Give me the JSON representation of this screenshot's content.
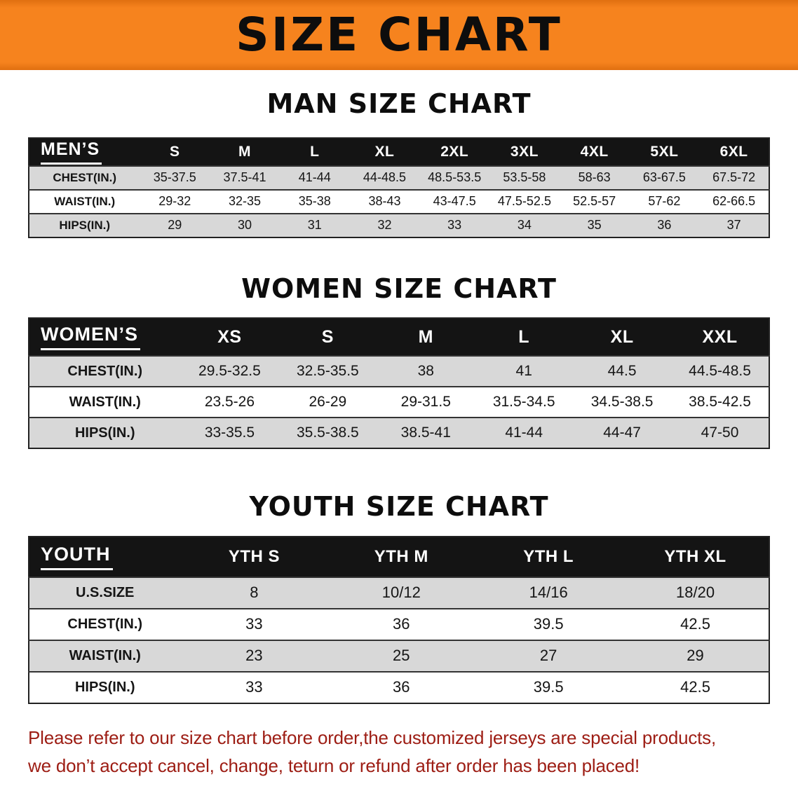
{
  "banner": {
    "title": "SIZE CHART"
  },
  "sections": [
    {
      "id": "men",
      "heading": "MAN SIZE CHART",
      "table": {
        "header": [
          "MEN’S",
          "S",
          "M",
          "L",
          "XL",
          "2XL",
          "3XL",
          "4XL",
          "5XL",
          "6XL"
        ],
        "rows": [
          [
            "CHEST(IN.)",
            "35-37.5",
            "37.5-41",
            "41-44",
            "44-48.5",
            "48.5-53.5",
            "53.5-58",
            "58-63",
            "63-67.5",
            "67.5-72"
          ],
          [
            "WAIST(IN.)",
            "29-32",
            "32-35",
            "35-38",
            "38-43",
            "43-47.5",
            "47.5-52.5",
            "52.5-57",
            "57-62",
            "62-66.5"
          ],
          [
            "HIPS(IN.)",
            "29",
            "30",
            "31",
            "32",
            "33",
            "34",
            "35",
            "36",
            "37"
          ]
        ]
      }
    },
    {
      "id": "women",
      "heading": "WOMEN SIZE CHART",
      "table": {
        "header": [
          "WOMEN’S",
          "XS",
          "S",
          "M",
          "L",
          "XL",
          "XXL"
        ],
        "rows": [
          [
            "CHEST(IN.)",
            "29.5-32.5",
            "32.5-35.5",
            "38",
            "41",
            "44.5",
            "44.5-48.5"
          ],
          [
            "WAIST(IN.)",
            "23.5-26",
            "26-29",
            "29-31.5",
            "31.5-34.5",
            "34.5-38.5",
            "38.5-42.5"
          ],
          [
            "HIPS(IN.)",
            "33-35.5",
            "35.5-38.5",
            "38.5-41",
            "41-44",
            "44-47",
            "47-50"
          ]
        ]
      }
    },
    {
      "id": "youth",
      "heading": "YOUTH SIZE CHART",
      "table": {
        "header": [
          "YOUTH",
          "YTH S",
          "YTH M",
          "YTH L",
          "YTH XL"
        ],
        "rows": [
          [
            "U.S.SIZE",
            "8",
            "10/12",
            "14/16",
            "18/20"
          ],
          [
            "CHEST(IN.)",
            "33",
            "36",
            "39.5",
            "42.5"
          ],
          [
            "WAIST(IN.)",
            "23",
            "25",
            "27",
            "29"
          ],
          [
            "HIPS(IN.)",
            "33",
            "36",
            "39.5",
            "42.5"
          ]
        ]
      }
    }
  ],
  "disclaimer": {
    "line1": "Please refer to our size chart before order,the customized jerseys are special products,",
    "line2": "we don’t accept cancel, change, teturn or refund after order has been placed!"
  },
  "colors": {
    "banner_bg": "#f6831e",
    "banner_edge": "#e06f10",
    "header_band": "#141414",
    "row_alt": "#d8d8d8",
    "row_line": "#333333",
    "disclaimer_text": "#9d1d14"
  }
}
